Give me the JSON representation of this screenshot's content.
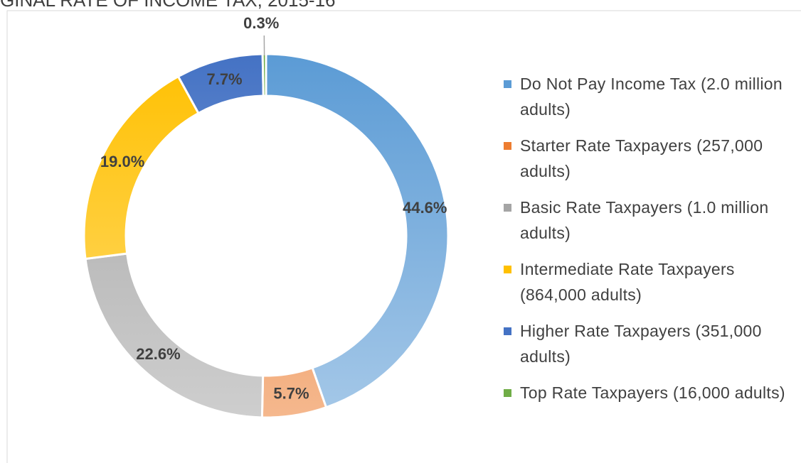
{
  "chart_data": {
    "type": "pie",
    "title": "GINAL RATE OF INCOME TAX, 2015-16",
    "categories": [
      "Do Not Pay Income Tax (2.0 million adults)",
      "Starter Rate Taxpayers (257,000 adults)",
      "Basic Rate Taxpayers (1.0 million adults)",
      "Intermediate Rate Taxpayers (864,000 adults)",
      "Higher Rate Taxpayers (351,000 adults)",
      "Top Rate Taxpayers (16,000 adults)"
    ],
    "values": [
      44.6,
      5.7,
      22.6,
      19.0,
      7.7,
      0.3
    ],
    "value_labels": [
      "44.6%",
      "5.7%",
      "22.6%",
      "19.0%",
      "7.7%",
      "0.3%"
    ],
    "colors": [
      "#5b9bd5",
      "#ed7d31",
      "#a5a5a5",
      "#ffc000",
      "#4472c4",
      "#70ad47"
    ],
    "legend": "right"
  }
}
